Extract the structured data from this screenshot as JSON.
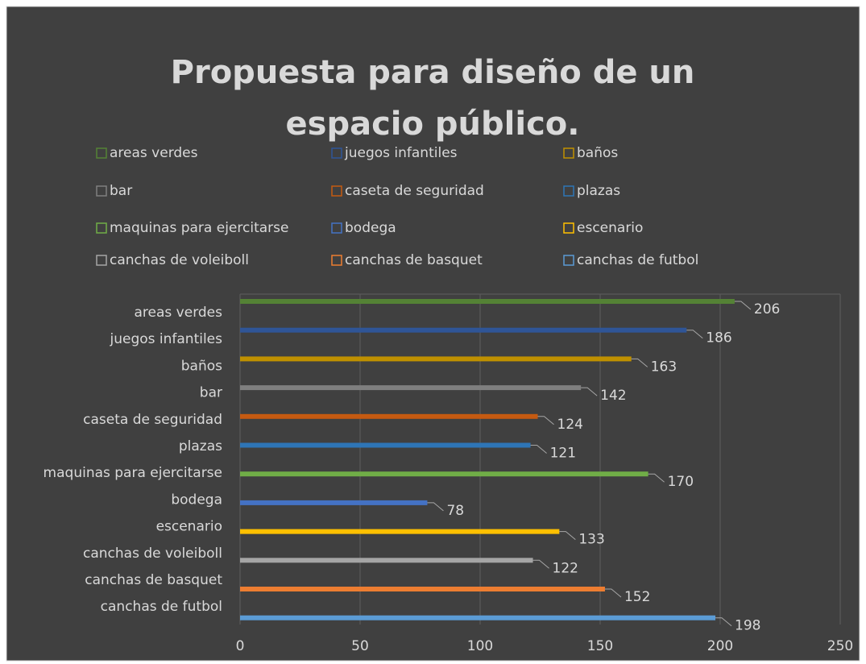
{
  "chart_data": {
    "type": "bar",
    "orientation": "horizontal",
    "title": "Propuesta para diseño de un espacio público.",
    "categories": [
      "areas verdes",
      "juegos infantiles",
      "baños",
      "bar",
      "caseta de seguridad",
      "plazas",
      "maquinas para ejercitarse",
      "bodega",
      "escenario",
      "canchas de voleiboll",
      "canchas de basquet",
      "canchas de futbol"
    ],
    "values": [
      206,
      186,
      163,
      142,
      124,
      121,
      170,
      78,
      133,
      122,
      152,
      198
    ],
    "colors": [
      "#548235",
      "#2f5597",
      "#bf9000",
      "#7f7f7f",
      "#c55a11",
      "#2e75b6",
      "#70ad47",
      "#4472c4",
      "#ffc000",
      "#a5a5a5",
      "#ed7d31",
      "#5b9bd5"
    ],
    "xlim": [
      0,
      250
    ],
    "xticks": [
      0,
      50,
      100,
      150,
      200,
      250
    ],
    "grid": true,
    "legend": "top"
  }
}
